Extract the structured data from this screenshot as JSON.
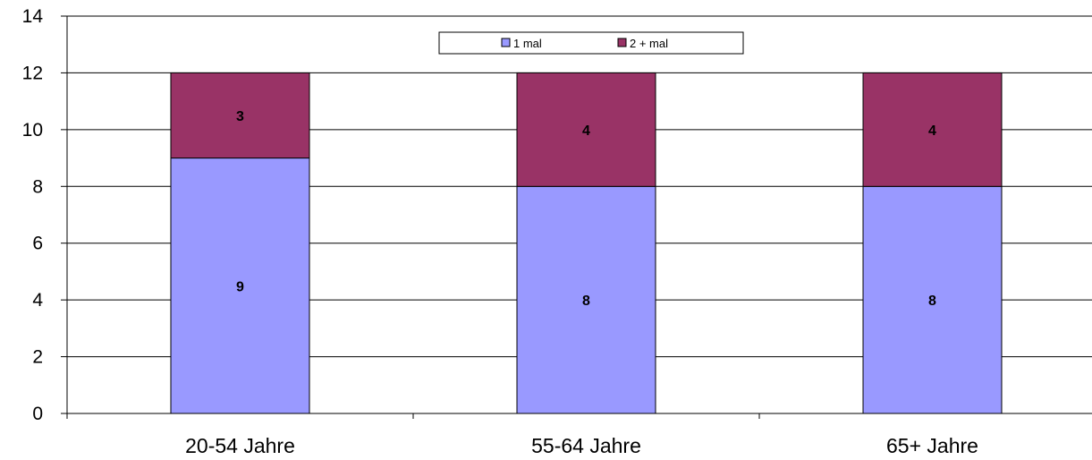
{
  "chart_data": {
    "type": "bar",
    "stacked": true,
    "title": "",
    "xlabel": "",
    "ylabel": "",
    "categories": [
      "20-54 Jahre",
      "55-64 Jahre",
      "65+ Jahre"
    ],
    "series": [
      {
        "name": "1 mal",
        "values": [
          9,
          8,
          8
        ],
        "color": "#9999FF"
      },
      {
        "name": "2 + mal",
        "values": [
          3,
          4,
          4
        ],
        "color": "#993366"
      }
    ],
    "ylim": [
      0,
      14
    ],
    "yticks": [
      0,
      2,
      4,
      6,
      8,
      10,
      12,
      14
    ],
    "grid": true,
    "legend": "top-center"
  }
}
